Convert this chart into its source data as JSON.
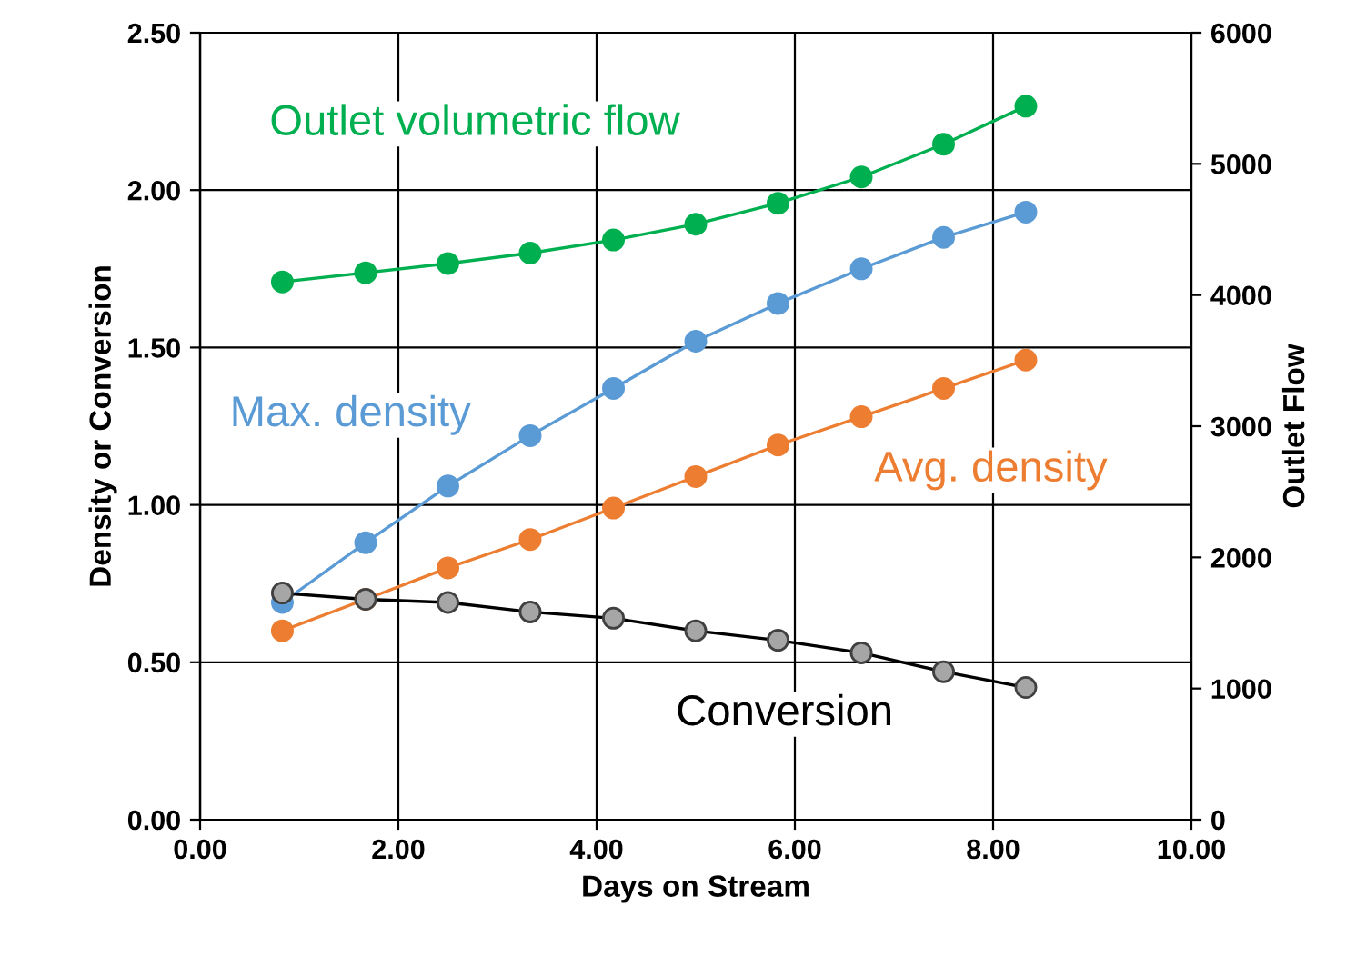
{
  "chart_data": {
    "type": "line",
    "xlabel": "Days on Stream",
    "ylabel": "Density or Conversion",
    "y2label": "Outlet Flow",
    "x": [
      0.83,
      1.67,
      2.5,
      3.33,
      4.17,
      5.0,
      5.83,
      6.67,
      7.5,
      8.33
    ],
    "series": [
      {
        "name": "Outlet volumetric flow",
        "color": "#00b050",
        "axis": "y2",
        "values": [
          4100,
          4170,
          4240,
          4320,
          4420,
          4540,
          4700,
          4900,
          5150,
          5440
        ]
      },
      {
        "name": "Max. density",
        "color": "#5b9bd5",
        "values": [
          0.69,
          0.88,
          1.06,
          1.22,
          1.37,
          1.52,
          1.64,
          1.75,
          1.85,
          1.93
        ]
      },
      {
        "name": "Avg. density",
        "color": "#ed7d31",
        "values": [
          0.6,
          0.7,
          0.8,
          0.89,
          0.99,
          1.09,
          1.19,
          1.28,
          1.37,
          1.46
        ]
      },
      {
        "name": "Conversion",
        "color": "#000000",
        "values": [
          0.72,
          0.7,
          0.69,
          0.66,
          0.64,
          0.6,
          0.57,
          0.53,
          0.47,
          0.42
        ]
      }
    ],
    "xlim": [
      0,
      10
    ],
    "xticks": [
      {
        "value": 0,
        "label": "0.00"
      },
      {
        "value": 2,
        "label": "2.00"
      },
      {
        "value": 4,
        "label": "4.00"
      },
      {
        "value": 6,
        "label": "6.00"
      },
      {
        "value": 8,
        "label": "8.00"
      },
      {
        "value": 10,
        "label": "10.00"
      }
    ],
    "ylim": [
      0,
      2.5
    ],
    "yticks": [
      {
        "value": 0,
        "label": "0.00"
      },
      {
        "value": 0.5,
        "label": "0.50"
      },
      {
        "value": 1,
        "label": "1.00"
      },
      {
        "value": 1.5,
        "label": "1.50"
      },
      {
        "value": 2,
        "label": "2.00"
      },
      {
        "value": 2.5,
        "label": "2.50"
      }
    ],
    "y2lim": [
      0,
      6000
    ],
    "y2ticks": [
      0,
      1000,
      2000,
      3000,
      4000,
      5000,
      6000
    ],
    "grid": true,
    "marker": "circle",
    "line_style": "solid"
  }
}
